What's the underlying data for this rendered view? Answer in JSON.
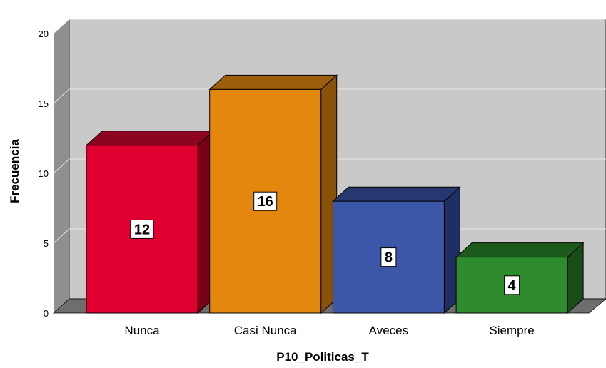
{
  "chart_data": {
    "type": "bar",
    "categories": [
      "Nunca",
      "Casi Nunca",
      "Aveces",
      "Siempre"
    ],
    "values": [
      12,
      16,
      8,
      4
    ],
    "data_labels": [
      "12",
      "16",
      "8",
      "4"
    ],
    "xlabel": "P10_Politicas_T",
    "ylabel": "Frecuencia",
    "ylim": [
      0,
      20
    ],
    "yticks": [
      0,
      5,
      10,
      15,
      20
    ],
    "grid": true,
    "style": "3d",
    "colors": [
      "#e0002f",
      "#e3870f",
      "#3d57a8",
      "#2e8b2e"
    ],
    "side_colors": [
      "#7a0018",
      "#8a5209",
      "#202f63",
      "#184d18"
    ],
    "top_colors": [
      "#8c0420",
      "#9c5e0a",
      "#26386f",
      "#1c5a1c"
    ],
    "wall_color": "#c9c9c9",
    "floor_color": "#6e6e6e"
  }
}
